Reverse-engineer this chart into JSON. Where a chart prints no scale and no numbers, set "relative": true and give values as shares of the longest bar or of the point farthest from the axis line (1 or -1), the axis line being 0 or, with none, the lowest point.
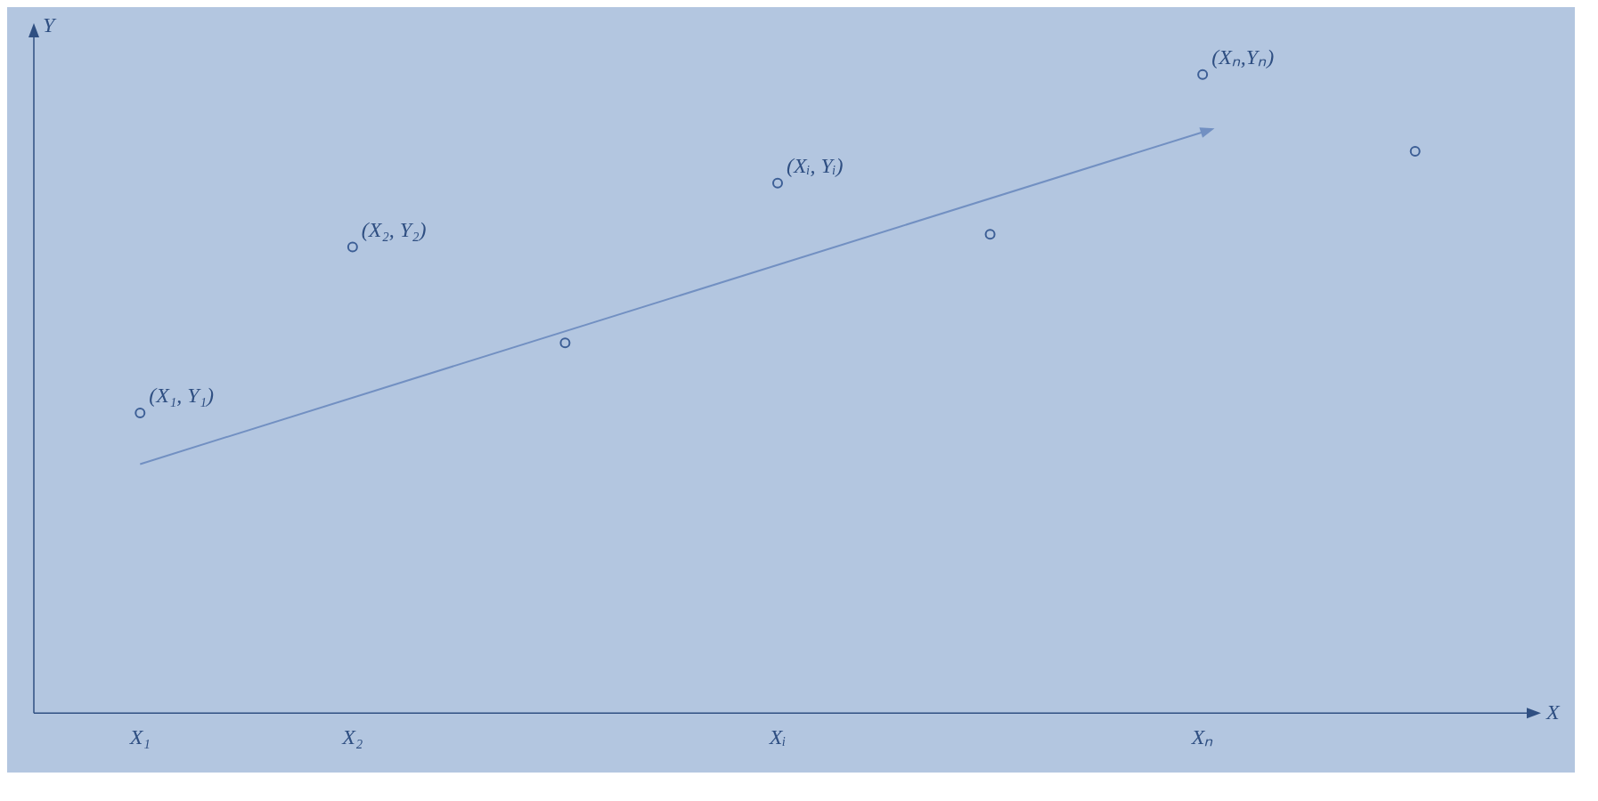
{
  "chart_data": {
    "type": "scatter",
    "relative": true,
    "xlabel": "X",
    "ylabel": "Y",
    "categories": [
      "X₁",
      "X₂",
      null,
      "Xᵢ",
      null,
      "Xₙ",
      null
    ],
    "series": [
      {
        "type": "scatter",
        "color": "#3d5f96",
        "marker": "circle",
        "values": [
          0.47,
          0.73,
          0.58,
          0.83,
          0.75,
          1,
          0.88
        ]
      },
      {
        "type": "line",
        "color": "#7290c2",
        "line_style": "solid",
        "values": [
          0.39,
          null,
          null,
          null,
          null,
          0.91,
          null
        ]
      }
    ],
    "annotations": [
      {
        "text": "(X₁, Y₁)",
        "x": "X₁",
        "y": 0.47
      },
      {
        "text": "(X₂, Y₂)",
        "x": "X₂",
        "y": 0.73
      },
      {
        "text": "(Xᵢ, Yᵢ)",
        "x": "Xᵢ",
        "y": 0.83
      },
      {
        "text": "(Xₙ,Yₙ)",
        "x": "Xₙ",
        "y": 1
      }
    ],
    "grid": false,
    "legend": false
  }
}
